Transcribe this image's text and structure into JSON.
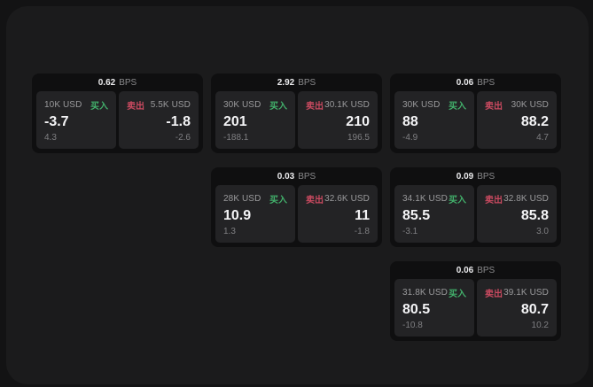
{
  "theme": {
    "bg_outer": "#131314",
    "bg_panel": "#1b1b1c",
    "bg_card": "#0f0f10",
    "bg_subpanel": "#232325",
    "green_buy": "#42b06b",
    "red_sell": "#c94a60"
  },
  "labels": {
    "bps": "BPS",
    "buy": "买入",
    "sell": "卖出"
  },
  "cards": [
    {
      "bps": "0.62",
      "buy": {
        "amount": "10K USD",
        "value": "-3.7",
        "delta": "4.3"
      },
      "sell": {
        "amount": "5.5K USD",
        "value": "-1.8",
        "delta": "-2.6"
      }
    },
    {
      "bps": "2.92",
      "buy": {
        "amount": "30K USD",
        "value": "201",
        "delta": "-188.1"
      },
      "sell": {
        "amount": "30.1K USD",
        "value": "210",
        "delta": "196.5"
      }
    },
    {
      "bps": "0.06",
      "buy": {
        "amount": "30K USD",
        "value": "88",
        "delta": "-4.9"
      },
      "sell": {
        "amount": "30K USD",
        "value": "88.2",
        "delta": "4.7"
      }
    },
    {
      "bps": "0.03",
      "buy": {
        "amount": "28K USD",
        "value": "10.9",
        "delta": "1.3"
      },
      "sell": {
        "amount": "32.6K USD",
        "value": "11",
        "delta": "-1.8"
      }
    },
    {
      "bps": "0.09",
      "buy": {
        "amount": "34.1K USD",
        "value": "85.5",
        "delta": "-3.1"
      },
      "sell": {
        "amount": "32.8K USD",
        "value": "85.8",
        "delta": "3.0"
      }
    },
    {
      "bps": "0.06",
      "buy": {
        "amount": "31.8K USD",
        "value": "80.5",
        "delta": "-10.8"
      },
      "sell": {
        "amount": "39.1K USD",
        "value": "80.7",
        "delta": "10.2"
      }
    }
  ]
}
